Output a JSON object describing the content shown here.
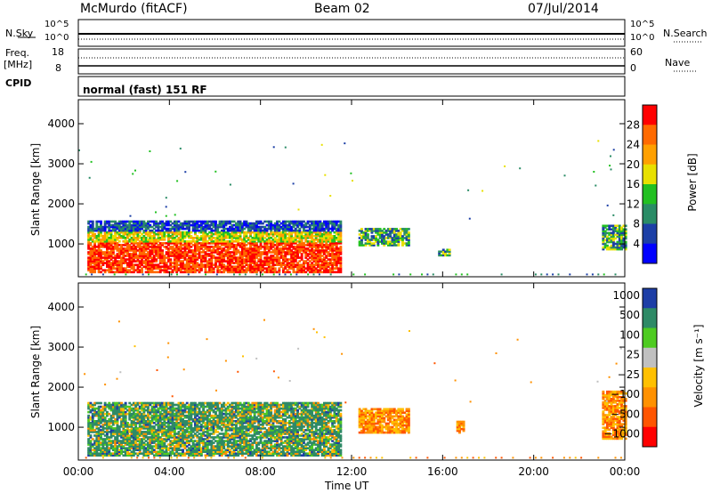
{
  "header": {
    "station": "McMurdo (fitACF)",
    "beam": "Beam 02",
    "date": "07/Jul/2014"
  },
  "top_panels": {
    "nsky_label": "N.Sky",
    "nsearch_label": "N.Search",
    "ticks_left": [
      "10^5",
      "10^0"
    ],
    "ticks_right": [
      "10^5",
      "10^0"
    ],
    "freq_label": "Freq.",
    "freq_unit": "[MHz]",
    "freq_ticks": [
      "18",
      "8"
    ],
    "nave_label": "Nave",
    "nave_ticks": [
      "60",
      "0"
    ],
    "cpid_label": "CPID",
    "cpid_text": "normal (fast) 151 RF"
  },
  "colors": {
    "power": [
      "#0000ff",
      "#1c3fa6",
      "#2a8c66",
      "#22c021",
      "#e8e000",
      "#ffa000",
      "#ff6a00",
      "#ff0000"
    ],
    "velocity": [
      "#ff0000",
      "#ff5500",
      "#ff9100",
      "#ffc000",
      "#c0c0c0",
      "#4ecb21",
      "#2e8a66",
      "#1d3ea6"
    ]
  },
  "chart_data": [
    {
      "type": "heatmap",
      "name": "power",
      "ylabel": "Slant Range [km]",
      "xlabel": "Time UT",
      "xlim": [
        0,
        24
      ],
      "ylim": [
        180,
        4600
      ],
      "x_ticks": [
        "00:00",
        "04:00",
        "08:00",
        "12:00",
        "16:00",
        "20:00",
        "00:00"
      ],
      "y_ticks": [
        "1000",
        "2000",
        "3000",
        "4000"
      ],
      "colorbar_label": "Power [dB]",
      "colorbar_ticks": [
        "4",
        "8",
        "12",
        "16",
        "20",
        "24",
        "28"
      ],
      "regions": [
        {
          "t0": 0.4,
          "t1": 11.5,
          "r0": 280,
          "r1": 1550,
          "level": "high"
        },
        {
          "t0": 12.3,
          "t1": 14.5,
          "r0": 950,
          "r1": 1400,
          "level": "mid"
        },
        {
          "t0": 15.8,
          "t1": 16.3,
          "r0": 700,
          "r1": 850,
          "level": "mid"
        },
        {
          "t0": 23.0,
          "t1": 24.0,
          "r0": 850,
          "r1": 1450,
          "level": "mid"
        }
      ]
    },
    {
      "type": "heatmap",
      "name": "velocity",
      "ylabel": "Slant Range [km]",
      "xlabel": "Time UT",
      "xlim": [
        0,
        24
      ],
      "ylim": [
        180,
        4600
      ],
      "x_ticks": [
        "00:00",
        "04:00",
        "08:00",
        "12:00",
        "16:00",
        "20:00",
        "00:00"
      ],
      "y_ticks": [
        "1000",
        "2000",
        "3000",
        "4000"
      ],
      "colorbar_label": "Velocity [m s⁻¹]",
      "colorbar_ticks": [
        "1000",
        "500",
        "100",
        "25",
        "−25",
        "−100",
        "−500",
        "−1000"
      ],
      "regions": [
        {
          "t0": 0.4,
          "t1": 11.5,
          "r0": 280,
          "r1": 1600,
          "level": "mixed"
        },
        {
          "t0": 12.3,
          "t1": 14.5,
          "r0": 850,
          "r1": 1450,
          "level": "neg"
        },
        {
          "t0": 16.6,
          "t1": 16.9,
          "r0": 850,
          "r1": 1150,
          "level": "neg"
        },
        {
          "t0": 23.0,
          "t1": 24.0,
          "r0": 700,
          "r1": 1900,
          "level": "neg"
        }
      ]
    }
  ]
}
